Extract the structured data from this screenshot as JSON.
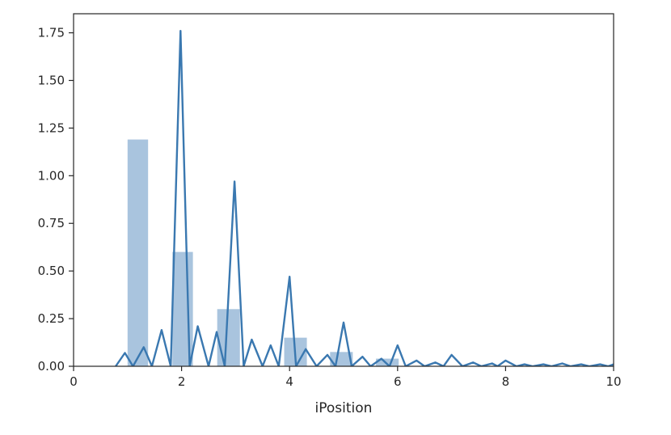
{
  "chart_data": {
    "type": "histogram+line",
    "title": "",
    "xlabel": "iPosition",
    "ylabel": "",
    "xlim": [
      0,
      10
    ],
    "ylim": [
      0,
      1.85
    ],
    "x_ticks": [
      0,
      2,
      4,
      6,
      8,
      10
    ],
    "x_tick_labels": [
      "0",
      "2",
      "4",
      "6",
      "8",
      "10"
    ],
    "y_ticks": [
      0,
      0.25,
      0.5,
      0.75,
      1.0,
      1.25,
      1.5,
      1.75
    ],
    "y_tick_labels": [
      "0.00",
      "0.25",
      "0.50",
      "0.75",
      "1.00",
      "1.25",
      "1.50",
      "1.75"
    ],
    "grid": false,
    "legend": null,
    "colors": {
      "bar_fill": "#a9c4de",
      "line": "#3a78b0",
      "axes": "#262626"
    },
    "histogram": {
      "bins": [
        {
          "x0": 1.0,
          "x1": 1.38,
          "density": 1.19
        },
        {
          "x0": 1.83,
          "x1": 2.21,
          "density": 0.6
        },
        {
          "x0": 2.66,
          "x1": 3.08,
          "density": 0.3
        },
        {
          "x0": 3.9,
          "x1": 4.32,
          "density": 0.15
        },
        {
          "x0": 4.75,
          "x1": 5.17,
          "density": 0.075
        },
        {
          "x0": 5.6,
          "x1": 6.02,
          "density": 0.04
        }
      ]
    },
    "density_line": {
      "x": [
        0.78,
        0.95,
        1.1,
        1.3,
        1.45,
        1.63,
        1.8,
        1.98,
        2.15,
        2.3,
        2.5,
        2.65,
        2.8,
        2.98,
        3.15,
        3.3,
        3.5,
        3.65,
        3.8,
        4.0,
        4.12,
        4.3,
        4.5,
        4.7,
        4.85,
        5.0,
        5.15,
        5.35,
        5.5,
        5.7,
        5.85,
        6.0,
        6.15,
        6.35,
        6.5,
        6.7,
        6.85,
        7.0,
        7.2,
        7.4,
        7.55,
        7.75,
        7.85,
        8.0,
        8.2,
        8.35,
        8.5,
        8.7,
        8.85,
        9.05,
        9.2,
        9.4,
        9.55,
        9.75,
        9.9,
        10.0
      ],
      "y": [
        0.0,
        0.07,
        0.0,
        0.1,
        0.0,
        0.19,
        0.0,
        1.76,
        0.0,
        0.21,
        0.0,
        0.18,
        0.0,
        0.97,
        0.0,
        0.14,
        0.0,
        0.11,
        0.0,
        0.47,
        0.0,
        0.09,
        0.0,
        0.06,
        0.0,
        0.23,
        0.0,
        0.05,
        0.0,
        0.04,
        0.0,
        0.11,
        0.0,
        0.03,
        0.0,
        0.02,
        0.0,
        0.06,
        0.0,
        0.02,
        0.0,
        0.015,
        0.0,
        0.03,
        0.0,
        0.01,
        0.0,
        0.01,
        0.0,
        0.015,
        0.0,
        0.01,
        0.0,
        0.01,
        0.0,
        0.01
      ]
    }
  }
}
